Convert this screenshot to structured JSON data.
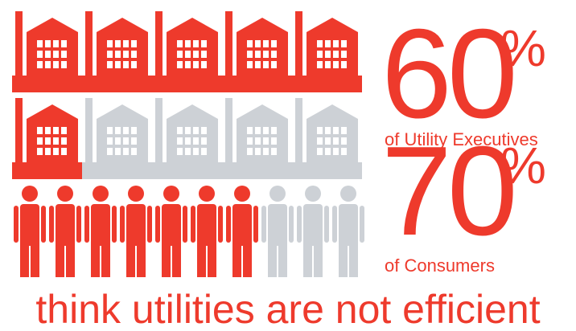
{
  "stats": [
    {
      "value": 60,
      "unit": "%",
      "label": "of Utility Executives"
    },
    {
      "value": 70,
      "unit": "%",
      "label": "of Consumers"
    }
  ],
  "footer": "think utilities are not efficient"
}
